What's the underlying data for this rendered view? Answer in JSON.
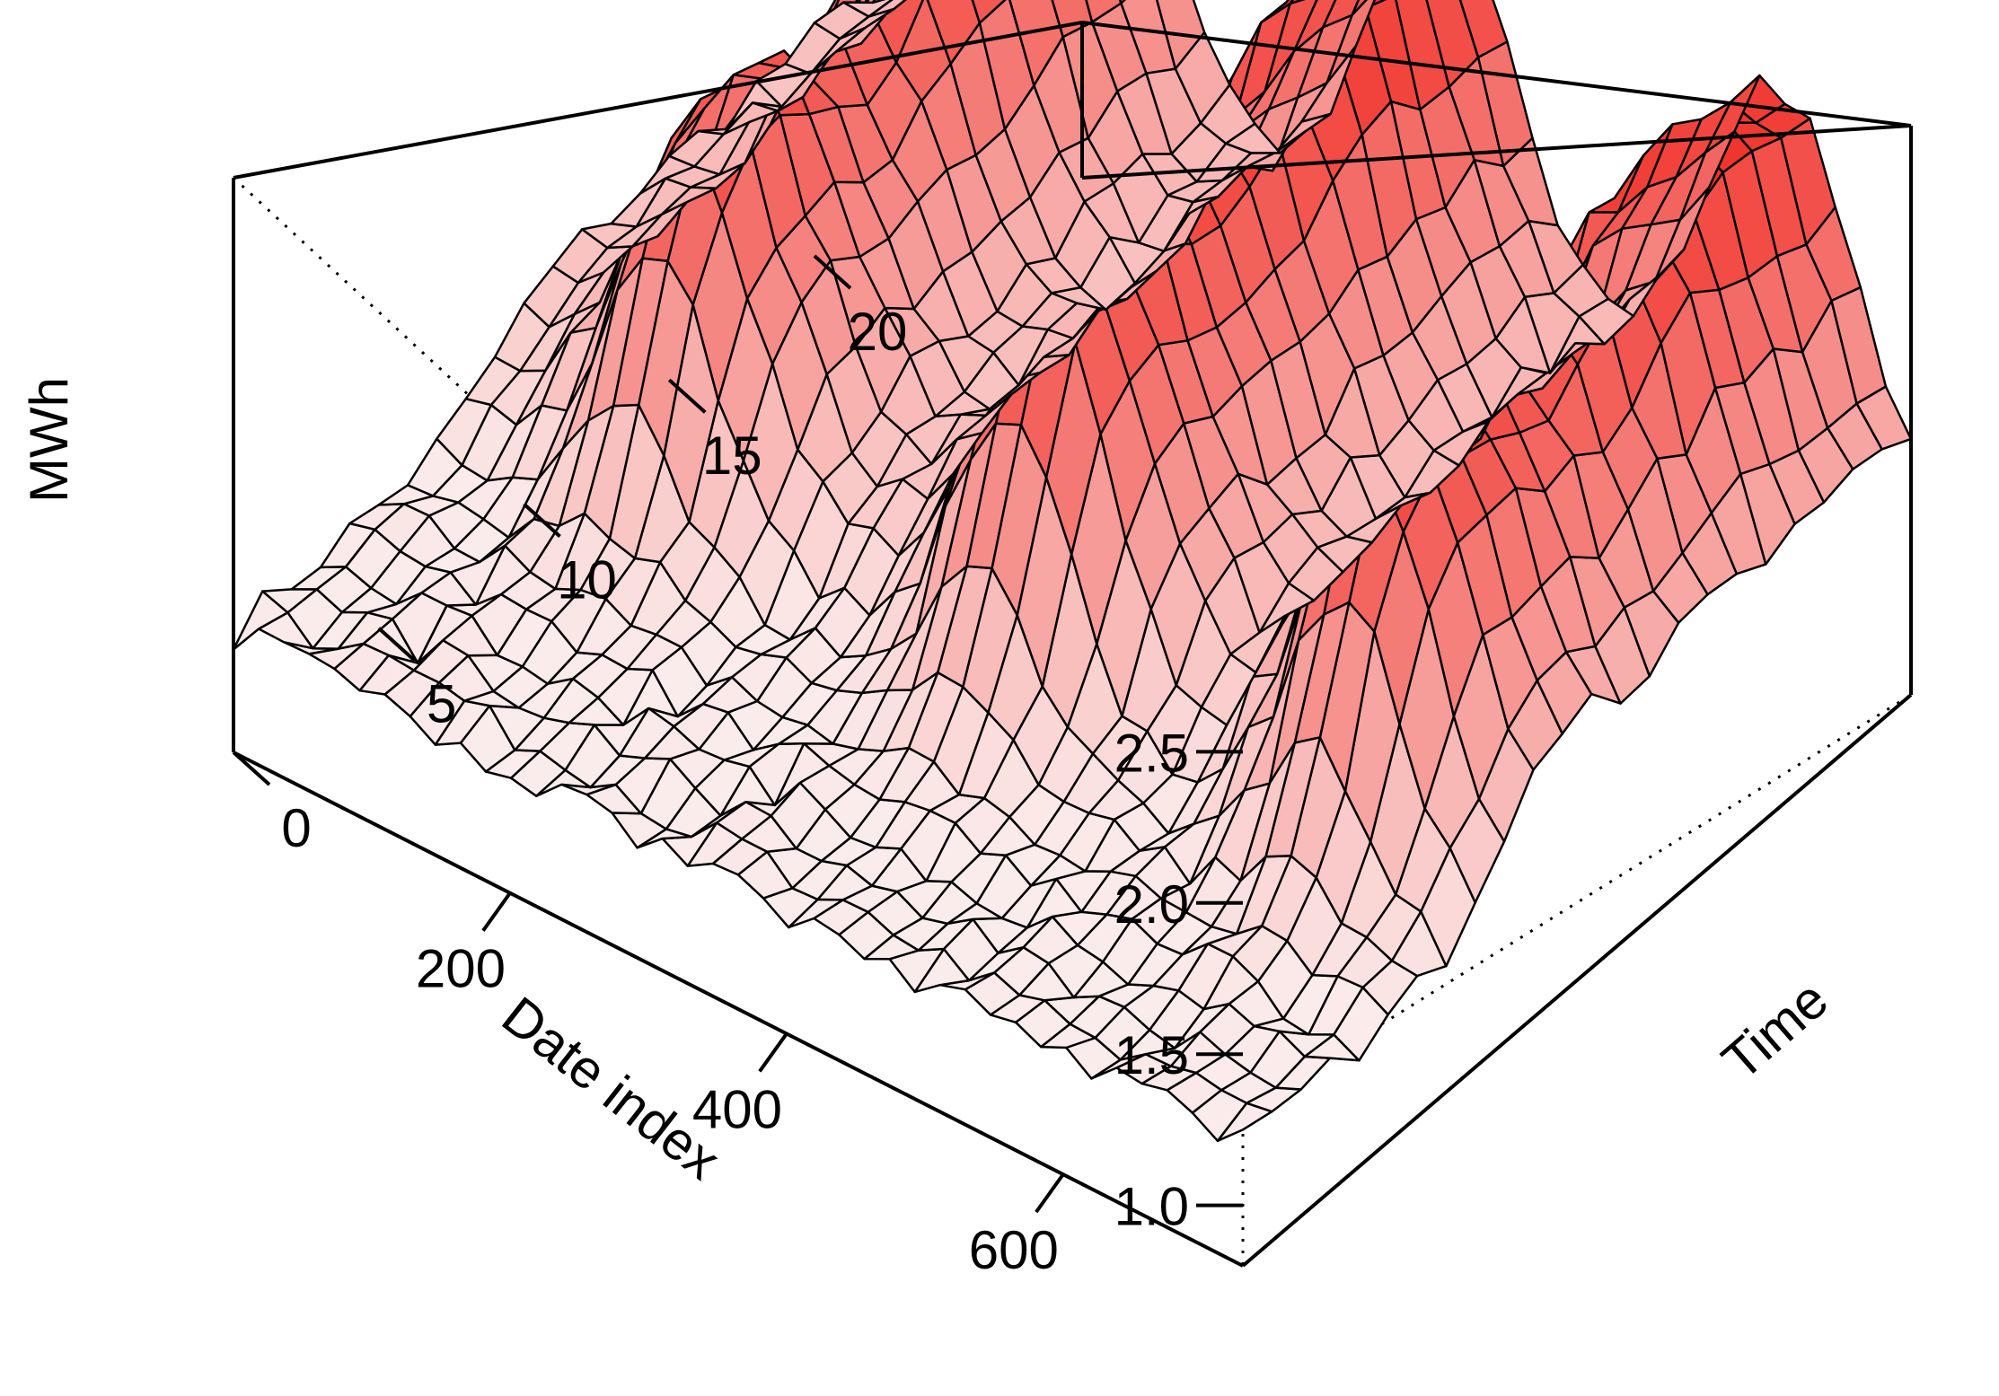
{
  "chart_data": {
    "type": "surface",
    "title": "",
    "x_axis": {
      "label": "Date index",
      "range": [
        0,
        730
      ],
      "ticks": [
        200,
        400,
        600
      ]
    },
    "y_axis": {
      "label": "Time",
      "range": [
        0,
        23
      ],
      "ticks": [
        0,
        5,
        10,
        15,
        20
      ]
    },
    "z_axis": {
      "label": "MWh",
      "range": [
        0.8,
        2.7
      ],
      "ticks": [
        "1.0",
        "1.5",
        "2.0",
        "2.5"
      ]
    },
    "grid": false,
    "box": true,
    "colors": {
      "low": "#fbecec",
      "high": "#f0322a",
      "edge": "#000000"
    },
    "surface_summary": {
      "night_level_mwh": 1.2,
      "winter_evening_peak_mwh": [
        2.5,
        2.65,
        2.6
      ],
      "summer_evening_level_mwh": 1.5,
      "peak_time_hours": [
        17,
        21
      ],
      "winter_peak_date_index": [
        140,
        395,
        635
      ]
    }
  }
}
